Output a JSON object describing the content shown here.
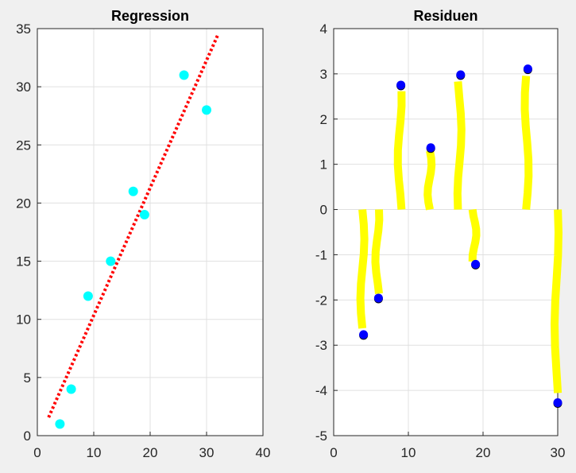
{
  "chart_data": [
    {
      "type": "scatter",
      "title": "Regression",
      "xlabel": "",
      "ylabel": "",
      "xlim": [
        0,
        40
      ],
      "ylim": [
        0,
        35
      ],
      "xticks": [
        0,
        10,
        20,
        30,
        40
      ],
      "yticks": [
        0,
        5,
        10,
        15,
        20,
        25,
        30,
        35
      ],
      "grid": true,
      "points": {
        "x": [
          4,
          6,
          9,
          13,
          17,
          19,
          26,
          30
        ],
        "y": [
          1,
          4,
          12,
          15,
          21,
          19,
          31,
          28
        ],
        "color": "#00ffff"
      },
      "fit_line": {
        "x": [
          2,
          32
        ],
        "intercept": -0.621,
        "slope": 1.0965,
        "color": "#ff0000",
        "style": "dotted"
      }
    },
    {
      "type": "stem",
      "title": "Residuen",
      "xlabel": "",
      "ylabel": "",
      "xlim": [
        0,
        30
      ],
      "ylim": [
        -5,
        4
      ],
      "xticks": [
        0,
        10,
        20,
        30
      ],
      "yticks": [
        -5,
        -4,
        -3,
        -2,
        -1,
        0,
        1,
        2,
        3,
        4
      ],
      "grid": true,
      "x": [
        4,
        6,
        9,
        13,
        17,
        19,
        26,
        30
      ],
      "residuals": [
        -2.765,
        -1.958,
        2.753,
        1.367,
        2.98,
        -1.21,
        3.11,
        -4.27
      ],
      "stem_color": "#ffff00",
      "marker_color": "#0000ff"
    }
  ]
}
